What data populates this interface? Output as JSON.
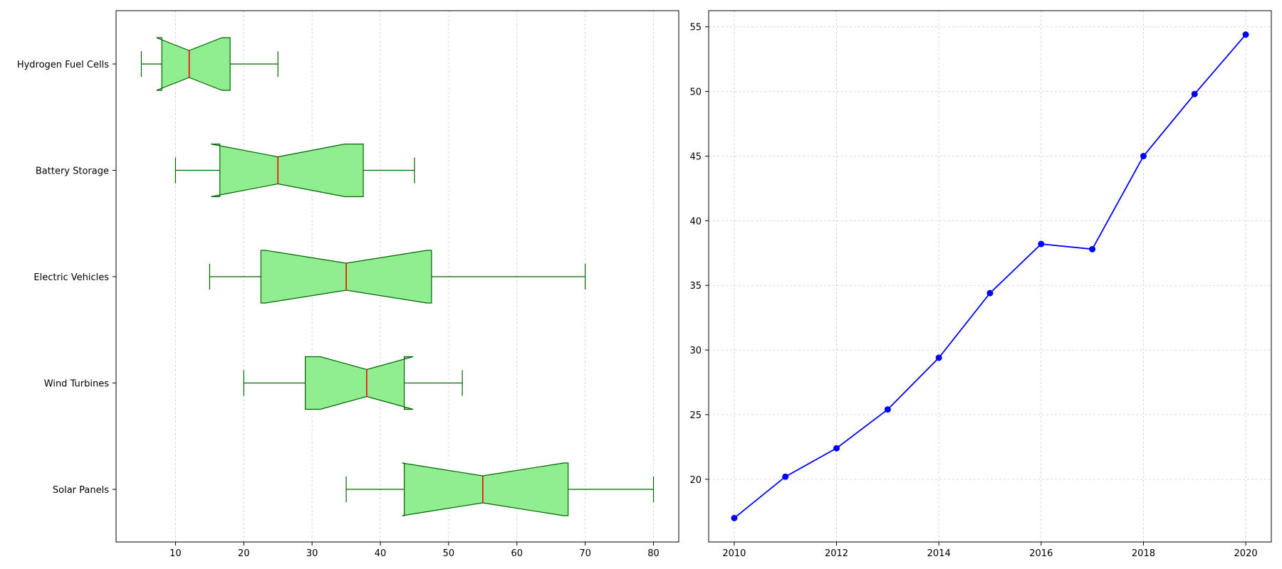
{
  "chart_data": [
    {
      "type": "boxplot",
      "orientation": "horizontal",
      "notched": true,
      "categories": [
        "Hydrogen Fuel Cells",
        "Battery Storage",
        "Electric Vehicles",
        "Wind Turbines",
        "Solar Panels"
      ],
      "boxes": [
        {
          "min": 5,
          "q1": 8,
          "median": 12,
          "q3": 18,
          "max": 25,
          "notch_low": 7.2,
          "notch_high": 16.8
        },
        {
          "min": 10,
          "q1": 16.5,
          "median": 25,
          "q3": 37.5,
          "max": 45,
          "notch_low": 15.2,
          "notch_high": 34.8
        },
        {
          "min": 15,
          "q1": 22.5,
          "median": 35,
          "q3": 47.5,
          "max": 70,
          "notch_low": 23.2,
          "notch_high": 46.8
        },
        {
          "min": 20,
          "q1": 29,
          "median": 38,
          "q3": 43.5,
          "max": 52,
          "notch_low": 31.2,
          "notch_high": 44.8
        },
        {
          "min": 35,
          "q1": 43.5,
          "median": 55,
          "q3": 67.5,
          "max": 80,
          "notch_low": 43.2,
          "notch_high": 66.8
        }
      ],
      "xlim": [
        1.3,
        83.7
      ],
      "xticks": [
        10,
        20,
        30,
        40,
        50,
        60,
        70,
        80
      ],
      "title": "",
      "xlabel": "",
      "ylabel": "",
      "grid": "x-dashed",
      "colors": {
        "box_fill": "#90ee90",
        "box_edge": "#006400",
        "median": "#ff0000",
        "grid": "#cccccc"
      }
    },
    {
      "type": "line",
      "x": [
        2010,
        2011,
        2012,
        2013,
        2014,
        2015,
        2016,
        2017,
        2018,
        2019,
        2020
      ],
      "values": [
        17.0,
        20.2,
        22.4,
        25.4,
        29.4,
        34.4,
        38.2,
        37.8,
        45.0,
        49.8,
        54.4
      ],
      "xlim": [
        2009.5,
        2020.5
      ],
      "ylim": [
        15.15,
        56.25
      ],
      "xticks": [
        2010,
        2012,
        2014,
        2016,
        2018,
        2020
      ],
      "yticks": [
        20,
        25,
        30,
        35,
        40,
        45,
        50,
        55
      ],
      "marker": "circle",
      "title": "",
      "xlabel": "",
      "ylabel": "",
      "grid": "both-dashed",
      "colors": {
        "line": "#0000ff",
        "marker": "#0000ff",
        "grid": "#cccccc"
      }
    }
  ]
}
